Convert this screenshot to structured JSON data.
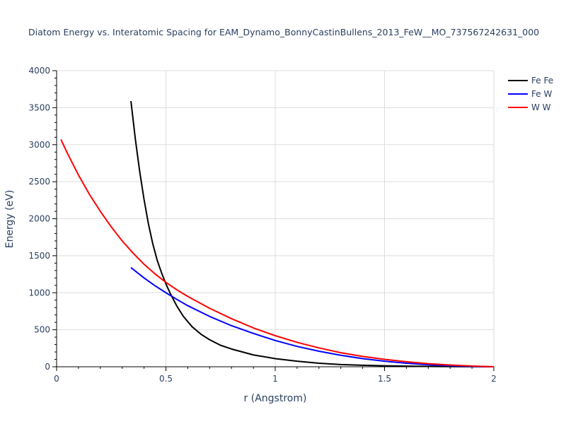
{
  "chart_data": {
    "type": "line",
    "title": "Diatom Energy vs. Interatomic Spacing for EAM_Dynamo_BonnyCastinBullens_2013_FeW__MO_737567242631_000",
    "xlabel": "r (Angstrom)",
    "ylabel": "Energy (eV)",
    "xlim": [
      0,
      2
    ],
    "ylim": [
      0,
      4000
    ],
    "xticks": [
      0,
      0.5,
      1,
      1.5,
      2
    ],
    "xtick_labels": [
      "0",
      "0.5",
      "1",
      "1.5",
      "2"
    ],
    "yticks": [
      0,
      500,
      1000,
      1500,
      2000,
      2500,
      3000,
      3500,
      4000
    ],
    "ytick_labels": [
      "0",
      "500",
      "1000",
      "1500",
      "2000",
      "2500",
      "3000",
      "3500",
      "4000"
    ],
    "grid": true,
    "legend_position": "top-right",
    "series": [
      {
        "name": "Fe Fe",
        "color": "#000000",
        "x": [
          0.34,
          0.36,
          0.38,
          0.4,
          0.42,
          0.44,
          0.46,
          0.48,
          0.5,
          0.52,
          0.55,
          0.58,
          0.62,
          0.66,
          0.7,
          0.75,
          0.8,
          0.9,
          1.0,
          1.1,
          1.2,
          1.3,
          1.4,
          1.5,
          1.6,
          1.7,
          1.8,
          1.9,
          2.0
        ],
        "y": [
          3590,
          3080,
          2640,
          2260,
          1930,
          1660,
          1440,
          1270,
          1120,
          990,
          820,
          680,
          540,
          440,
          365,
          290,
          240,
          160,
          110,
          75,
          48,
          30,
          20,
          13,
          8,
          5,
          3,
          1,
          0
        ]
      },
      {
        "name": "Fe W",
        "color": "#0000ff",
        "x": [
          0.34,
          0.4,
          0.45,
          0.5,
          0.55,
          0.6,
          0.7,
          0.8,
          0.9,
          1.0,
          1.1,
          1.2,
          1.3,
          1.4,
          1.5,
          1.6,
          1.7,
          1.8,
          1.9,
          2.0
        ],
        "y": [
          1340,
          1200,
          1095,
          1000,
          910,
          825,
          680,
          555,
          450,
          355,
          275,
          210,
          155,
          110,
          75,
          48,
          28,
          14,
          5,
          0
        ]
      },
      {
        "name": "W W",
        "color": "#ff0000",
        "x": [
          0.02,
          0.05,
          0.1,
          0.15,
          0.2,
          0.25,
          0.3,
          0.35,
          0.4,
          0.45,
          0.5,
          0.55,
          0.6,
          0.7,
          0.8,
          0.9,
          1.0,
          1.1,
          1.2,
          1.3,
          1.4,
          1.5,
          1.6,
          1.7,
          1.8,
          1.9,
          2.0
        ],
        "y": [
          3070,
          2880,
          2590,
          2330,
          2100,
          1890,
          1700,
          1535,
          1385,
          1255,
          1140,
          1040,
          950,
          790,
          650,
          525,
          420,
          330,
          255,
          190,
          140,
          100,
          68,
          42,
          24,
          10,
          0
        ]
      }
    ]
  }
}
